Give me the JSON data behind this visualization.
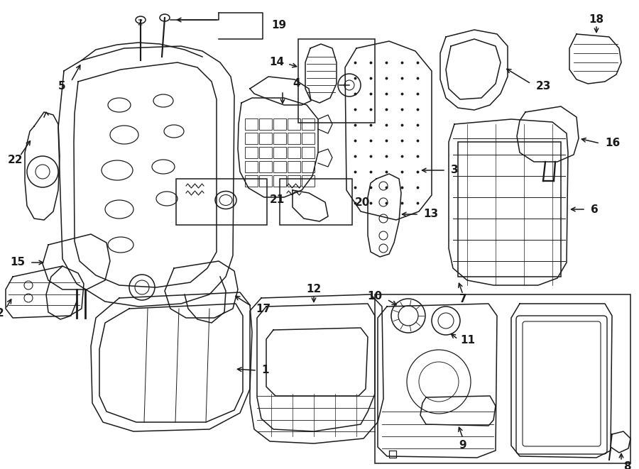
{
  "background_color": "#ffffff",
  "line_color": "#1a1a1a",
  "figsize": [
    9.0,
    6.61
  ],
  "dpi": 100,
  "lw": 1.1,
  "parts": {
    "label_fontsize": 11,
    "label_fontweight": "bold"
  }
}
